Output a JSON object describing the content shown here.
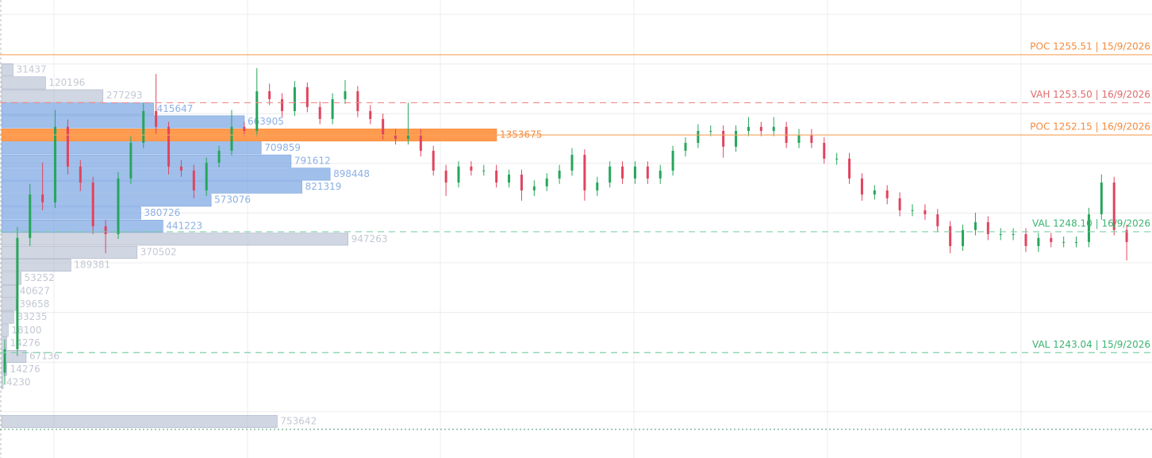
{
  "chart_data": {
    "type": "candlestick",
    "ylim": [
      1238.63,
      1257.8
    ],
    "up_color": "#26a65b",
    "down_color": "#e0445f",
    "grid": true,
    "levels": [
      {
        "label": "POC 1255.51 | 15/9/2026",
        "price": 1255.51,
        "color": "#f7a35c",
        "text_color": "#f58a3c",
        "dash": "solid"
      },
      {
        "label": "VAH 1253.50 | 16/9/2026",
        "price": 1253.5,
        "color": "#f08a8a",
        "text_color": "#e06b6b",
        "dash": "dashed"
      },
      {
        "label": "POC 1252.15 | 16/9/2026",
        "price": 1252.15,
        "color": "#f7a35c",
        "text_color": "#f58a3c",
        "dash": "solid"
      },
      {
        "label": "VAL 1248.10 | 16/9/2026",
        "price": 1248.1,
        "color": "#7fd0a8",
        "text_color": "#3cb371",
        "dash": "dashed"
      },
      {
        "label": "VAL 1243.04 | 15/9/2026",
        "price": 1243.04,
        "color": "#7fd0a8",
        "text_color": "#3cb371",
        "dash": "dashed"
      },
      {
        "price": 1239.83,
        "color": "#6aa88a",
        "dash": "dotted"
      }
    ],
    "volume_profile": [
      {
        "price": 1254.88,
        "volume": 31437,
        "color": "gray"
      },
      {
        "price": 1254.33,
        "volume": 120196,
        "color": "gray"
      },
      {
        "price": 1253.79,
        "volume": 277293,
        "color": "gray"
      },
      {
        "price": 1253.24,
        "volume": 415647,
        "color": "blue"
      },
      {
        "price": 1252.7,
        "volume": 663905,
        "color": "blue"
      },
      {
        "price": 1252.15,
        "volume": 1353675,
        "color": "orange"
      },
      {
        "price": 1251.61,
        "volume": 709859,
        "color": "blue"
      },
      {
        "price": 1251.06,
        "volume": 791612,
        "color": "blue"
      },
      {
        "price": 1250.51,
        "volume": 898448,
        "color": "blue"
      },
      {
        "price": 1249.97,
        "volume": 821319,
        "color": "blue"
      },
      {
        "price": 1249.42,
        "volume": 573076,
        "color": "blue"
      },
      {
        "price": 1248.88,
        "volume": 380726,
        "color": "blue"
      },
      {
        "price": 1248.33,
        "volume": 441223,
        "color": "blue"
      },
      {
        "price": 1247.79,
        "volume": 947263,
        "color": "gray"
      },
      {
        "price": 1247.24,
        "volume": 370502,
        "color": "gray"
      },
      {
        "price": 1246.7,
        "volume": 189381,
        "color": "gray"
      },
      {
        "price": 1246.15,
        "volume": 53252,
        "color": "gray"
      },
      {
        "price": 1245.61,
        "volume": 40627,
        "color": "gray"
      },
      {
        "price": 1245.06,
        "volume": 39658,
        "color": "gray"
      },
      {
        "price": 1244.52,
        "volume": 33235,
        "color": "gray"
      },
      {
        "price": 1243.97,
        "volume": 18100,
        "color": "gray"
      },
      {
        "price": 1243.43,
        "volume": 14276,
        "color": "gray"
      },
      {
        "price": 1242.88,
        "volume": 67136,
        "color": "gray"
      },
      {
        "price": 1242.34,
        "volume": 14276,
        "color": "gray"
      },
      {
        "price": 1241.79,
        "volume": 4230,
        "color": "gray"
      },
      {
        "price": 1240.16,
        "volume": 753642,
        "color": "gray"
      }
    ],
    "ohlc": [
      [
        1242.2,
        1243.6,
        1241.7,
        1243.18
      ],
      [
        1243.18,
        1248.3,
        1242.9,
        1247.84
      ],
      [
        1247.84,
        1250.1,
        1247.5,
        1249.66
      ],
      [
        1249.66,
        1251.0,
        1249.0,
        1249.33
      ],
      [
        1249.33,
        1253.2,
        1249.1,
        1252.49
      ],
      [
        1252.49,
        1252.8,
        1250.5,
        1250.83
      ],
      [
        1250.83,
        1251.1,
        1249.8,
        1250.16
      ],
      [
        1250.16,
        1250.4,
        1248.0,
        1248.33
      ],
      [
        1248.33,
        1248.6,
        1247.2,
        1248.0
      ],
      [
        1248.0,
        1250.6,
        1247.8,
        1250.33
      ],
      [
        1250.33,
        1252.1,
        1250.1,
        1251.82
      ],
      [
        1251.82,
        1253.5,
        1251.6,
        1253.15
      ],
      [
        1253.15,
        1254.7,
        1252.2,
        1252.49
      ],
      [
        1252.49,
        1252.7,
        1250.5,
        1250.83
      ],
      [
        1250.83,
        1251.1,
        1250.4,
        1250.66
      ],
      [
        1250.66,
        1250.9,
        1249.5,
        1249.83
      ],
      [
        1249.83,
        1251.2,
        1249.6,
        1250.99
      ],
      [
        1250.99,
        1251.7,
        1250.8,
        1251.49
      ],
      [
        1251.49,
        1253.2,
        1251.3,
        1252.49
      ],
      [
        1252.49,
        1252.7,
        1252.1,
        1252.32
      ],
      [
        1252.32,
        1254.95,
        1252.1,
        1253.98
      ],
      [
        1253.98,
        1254.3,
        1253.4,
        1253.65
      ],
      [
        1253.65,
        1253.9,
        1252.9,
        1253.15
      ],
      [
        1253.15,
        1254.4,
        1252.95,
        1254.15
      ],
      [
        1254.15,
        1254.35,
        1253.1,
        1253.32
      ],
      [
        1253.32,
        1253.55,
        1252.6,
        1252.82
      ],
      [
        1252.82,
        1253.9,
        1252.6,
        1253.65
      ],
      [
        1253.65,
        1254.45,
        1253.45,
        1253.98
      ],
      [
        1253.98,
        1254.2,
        1252.9,
        1253.15
      ],
      [
        1253.15,
        1253.4,
        1252.6,
        1252.82
      ],
      [
        1252.82,
        1253.05,
        1251.95,
        1252.15
      ],
      [
        1252.15,
        1252.4,
        1251.75,
        1251.99
      ],
      [
        1251.99,
        1253.5,
        1251.75,
        1252.15
      ],
      [
        1252.15,
        1252.4,
        1251.25,
        1251.49
      ],
      [
        1251.49,
        1251.7,
        1250.45,
        1250.66
      ],
      [
        1250.66,
        1250.9,
        1249.6,
        1250.16
      ],
      [
        1250.16,
        1251.05,
        1249.95,
        1250.83
      ],
      [
        1250.83,
        1251.05,
        1250.45,
        1250.66
      ],
      [
        1250.66,
        1250.9,
        1250.45,
        1250.66
      ],
      [
        1250.66,
        1250.9,
        1249.95,
        1250.16
      ],
      [
        1250.16,
        1250.7,
        1249.95,
        1250.49
      ],
      [
        1250.49,
        1250.7,
        1249.4,
        1249.83
      ],
      [
        1249.83,
        1250.25,
        1249.6,
        1250.0
      ],
      [
        1250.0,
        1250.55,
        1249.8,
        1250.33
      ],
      [
        1250.33,
        1250.9,
        1250.1,
        1250.66
      ],
      [
        1250.66,
        1251.6,
        1250.45,
        1251.32
      ],
      [
        1251.32,
        1251.55,
        1249.4,
        1249.83
      ],
      [
        1249.83,
        1250.4,
        1249.6,
        1250.16
      ],
      [
        1250.16,
        1251.05,
        1249.95,
        1250.83
      ],
      [
        1250.83,
        1251.05,
        1250.1,
        1250.33
      ],
      [
        1250.33,
        1251.05,
        1250.1,
        1250.83
      ],
      [
        1250.83,
        1251.05,
        1250.1,
        1250.33
      ],
      [
        1250.33,
        1250.9,
        1250.1,
        1250.66
      ],
      [
        1250.66,
        1251.7,
        1250.45,
        1251.49
      ],
      [
        1251.49,
        1252.05,
        1251.25,
        1251.82
      ],
      [
        1251.82,
        1252.6,
        1251.6,
        1252.32
      ],
      [
        1252.32,
        1252.55,
        1252.1,
        1252.32
      ],
      [
        1252.32,
        1252.55,
        1251.2,
        1251.66
      ],
      [
        1251.66,
        1252.55,
        1251.45,
        1252.32
      ],
      [
        1252.32,
        1252.9,
        1252.1,
        1252.49
      ],
      [
        1252.49,
        1252.7,
        1252.1,
        1252.32
      ],
      [
        1252.32,
        1252.9,
        1252.1,
        1252.49
      ],
      [
        1252.49,
        1252.7,
        1251.6,
        1251.82
      ],
      [
        1251.82,
        1252.4,
        1251.6,
        1252.15
      ],
      [
        1252.15,
        1252.4,
        1251.6,
        1251.82
      ],
      [
        1251.82,
        1252.05,
        1250.95,
        1251.16
      ],
      [
        1251.16,
        1251.4,
        1250.9,
        1251.16
      ],
      [
        1251.16,
        1251.4,
        1250.1,
        1250.33
      ],
      [
        1250.33,
        1250.55,
        1249.4,
        1249.66
      ],
      [
        1249.66,
        1250.05,
        1249.45,
        1249.83
      ],
      [
        1249.83,
        1250.05,
        1249.25,
        1249.5
      ],
      [
        1249.5,
        1249.75,
        1248.75,
        1249.0
      ],
      [
        1249.0,
        1249.25,
        1248.75,
        1249.0
      ],
      [
        1249.0,
        1249.25,
        1248.6,
        1248.83
      ],
      [
        1248.83,
        1249.05,
        1248.1,
        1248.33
      ],
      [
        1248.33,
        1248.55,
        1247.2,
        1247.5
      ],
      [
        1247.5,
        1248.4,
        1247.3,
        1248.17
      ],
      [
        1248.17,
        1248.9,
        1247.95,
        1248.5
      ],
      [
        1248.5,
        1248.75,
        1247.75,
        1248.0
      ],
      [
        1248.0,
        1248.25,
        1247.75,
        1248.0
      ],
      [
        1248.0,
        1248.25,
        1247.75,
        1248.0
      ],
      [
        1248.0,
        1248.25,
        1247.25,
        1247.5
      ],
      [
        1247.5,
        1248.05,
        1247.25,
        1247.84
      ],
      [
        1247.84,
        1248.05,
        1247.45,
        1247.67
      ],
      [
        1247.67,
        1247.9,
        1247.45,
        1247.67
      ],
      [
        1247.67,
        1247.9,
        1247.45,
        1247.67
      ],
      [
        1247.67,
        1249.1,
        1247.45,
        1248.83
      ],
      [
        1248.83,
        1250.5,
        1248.6,
        1250.16
      ],
      [
        1250.16,
        1250.4,
        1247.95,
        1248.17
      ],
      [
        1248.17,
        1248.4,
        1246.9,
        1247.67
      ]
    ]
  }
}
